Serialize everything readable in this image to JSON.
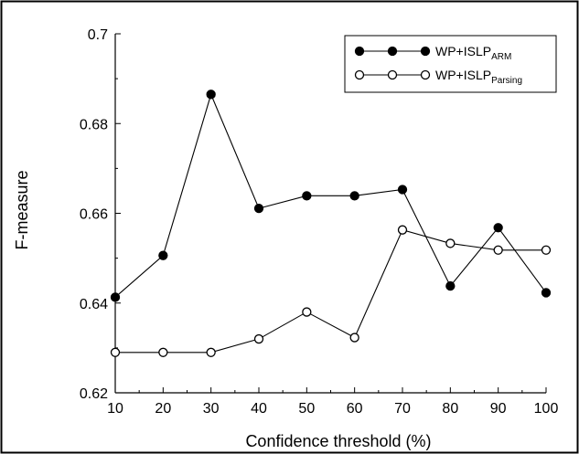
{
  "chart_data": {
    "type": "line",
    "xlabel": "Confidence threshold (%)",
    "ylabel": "F-measure",
    "x": [
      10,
      20,
      30,
      40,
      50,
      60,
      70,
      80,
      90,
      100
    ],
    "xlim": [
      10,
      100
    ],
    "ylim": [
      0.62,
      0.7
    ],
    "xticks": [
      "10",
      "20",
      "30",
      "40",
      "50",
      "60",
      "70",
      "80",
      "90",
      "100"
    ],
    "yticks": [
      "0.62",
      "0.64",
      "0.66",
      "0.68",
      "0.7"
    ],
    "yticks_values": [
      0.62,
      0.64,
      0.66,
      0.68,
      0.7
    ],
    "grid": false,
    "legend_position": "top-right",
    "series": [
      {
        "name": "WP+ISLP",
        "subscript": "ARM",
        "marker": "filled-circle",
        "values": [
          0.6413,
          0.6506,
          0.6865,
          0.6611,
          0.6639,
          0.6639,
          0.6653,
          0.6438,
          0.6568,
          0.6423
        ]
      },
      {
        "name": "WP+ISLP",
        "subscript": "Parsing",
        "marker": "open-circle",
        "values": [
          0.629,
          0.629,
          0.629,
          0.632,
          0.638,
          0.6323,
          0.6563,
          0.6533,
          0.6518,
          0.6518
        ]
      }
    ],
    "colors": {
      "line": "#000000",
      "background": "#ffffff",
      "border": "#000000"
    }
  }
}
